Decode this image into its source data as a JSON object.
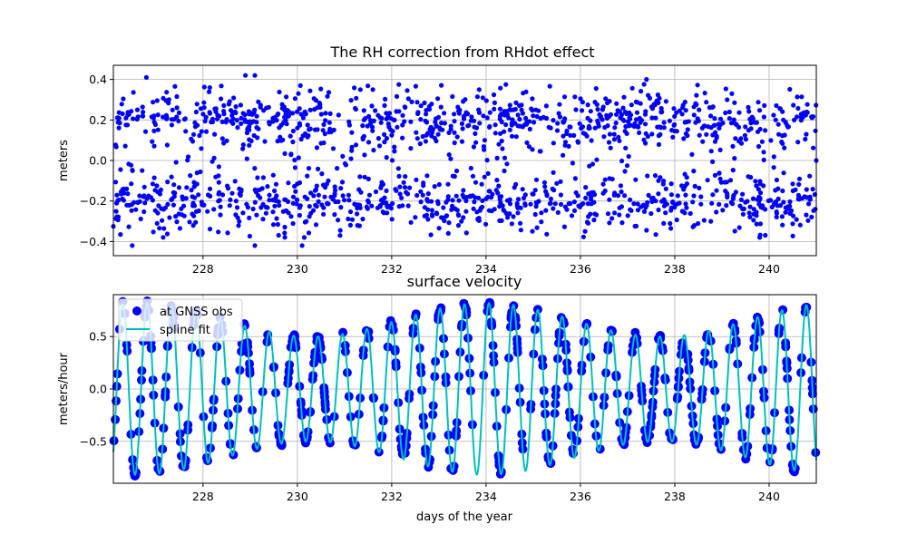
{
  "chart_data": [
    {
      "type": "scatter",
      "title": "The RH correction from RHdot effect",
      "xlabel": "",
      "ylabel": "meters",
      "xlim": [
        226.1,
        241.0
      ],
      "ylim": [
        -0.47,
        0.47
      ],
      "xticks": [
        228,
        230,
        232,
        234,
        236,
        238,
        240
      ],
      "xtick_labels": [
        "228",
        "230",
        "232",
        "234",
        "236",
        "238",
        "240"
      ],
      "yticks": [
        -0.4,
        -0.2,
        0.0,
        0.2,
        0.4
      ],
      "ytick_labels": [
        "−0.4",
        "−0.2",
        "0.0",
        "0.2",
        "0.4"
      ],
      "grid": true,
      "series": [
        {
          "name": "RH correction",
          "color": "#0000ff",
          "marker": "dot",
          "count_estimate": 1600,
          "x_range": [
            226.1,
            241.0
          ],
          "y_range": [
            -0.42,
            0.42
          ],
          "sample_points": [
            [
              226.8,
              0.41
            ],
            [
              228.9,
              0.42
            ],
            [
              229.1,
              0.42
            ],
            [
              237.4,
              0.4
            ],
            [
              226.5,
              -0.42
            ],
            [
              229.1,
              -0.42
            ],
            [
              230.1,
              -0.42
            ],
            [
              239.8,
              -0.38
            ],
            [
              233.2,
              -0.36
            ],
            [
              236.1,
              -0.35
            ],
            [
              241.0,
              0.0
            ],
            [
              231.6,
              0.35
            ]
          ],
          "seed": 12345
        }
      ]
    },
    {
      "type": "line",
      "title": "surface velocity",
      "xlabel": "days of the year",
      "ylabel": "meters/hour",
      "xlim": [
        226.1,
        241.0
      ],
      "ylim": [
        -0.9,
        0.9
      ],
      "xticks": [
        228,
        230,
        232,
        234,
        236,
        238,
        240
      ],
      "xtick_labels": [
        "228",
        "230",
        "232",
        "234",
        "236",
        "238",
        "240"
      ],
      "yticks": [
        -0.5,
        0.0,
        0.5
      ],
      "ytick_labels": [
        "−0.5",
        "0.0",
        "0.5"
      ],
      "grid": true,
      "legend": {
        "position": "top-left",
        "entries": [
          "at GNSS obs",
          "spline fit"
        ]
      },
      "series": [
        {
          "name": "at GNSS obs",
          "color": "#0000ff",
          "marker": "circle",
          "count_estimate": 700
        },
        {
          "name": "spline fit",
          "color": "#00bfbf",
          "marker": "none",
          "period_days": 0.5175,
          "phase_days": 226.04,
          "amplitude_range": [
            0.5,
            0.82
          ],
          "x_range": [
            226.1,
            241.0
          ]
        }
      ]
    }
  ]
}
